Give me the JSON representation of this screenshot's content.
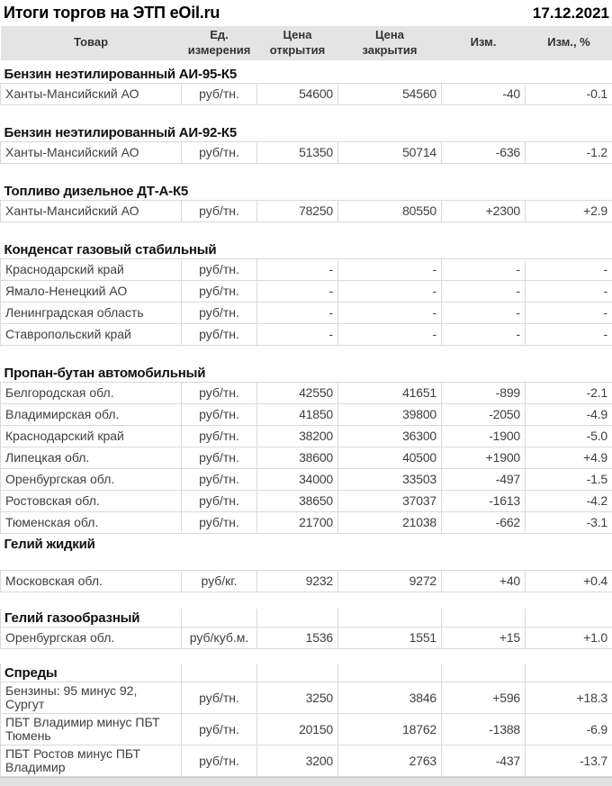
{
  "page": {
    "title": "Итоги торгов на ЭТП eOil.ru",
    "date": "17.12.2021"
  },
  "columns": [
    "Товар",
    "Ед. измерения",
    "Цена открытия",
    "Цена закрытия",
    "Изм.",
    "Изм., %"
  ],
  "colors": {
    "positive": "#008000",
    "negative": "#C00000",
    "header_bg": "#E4E4E4",
    "border": "#D9D9D9",
    "text": "#3F3F3F"
  },
  "sections": [
    {
      "title": "Бензин неэтилированный АИ-95-К5",
      "rows": [
        {
          "name": "Ханты-Мансийский АО",
          "unit": "руб/тн.",
          "open": "54600",
          "close": "54560",
          "change": "-40",
          "change_pct": "-0.1"
        }
      ]
    },
    {
      "title": "Бензин неэтилированный АИ-92-К5",
      "rows": [
        {
          "name": "Ханты-Мансийский АО",
          "unit": "руб/тн.",
          "open": "51350",
          "close": "50714",
          "change": "-636",
          "change_pct": "-1.2"
        }
      ]
    },
    {
      "title": "Топливо дизельное ДТ-А-К5",
      "rows": [
        {
          "name": "Ханты-Мансийский АО",
          "unit": "руб/тн.",
          "open": "78250",
          "close": "80550",
          "change": "+2300",
          "change_pct": "+2.9"
        }
      ]
    },
    {
      "title": "Конденсат газовый стабильный",
      "rows": [
        {
          "name": "Краснодарский край",
          "unit": "руб/тн.",
          "open": "-",
          "close": "-",
          "change": "-",
          "change_pct": "-"
        },
        {
          "name": "Ямало-Ненецкий АО",
          "unit": "руб/тн.",
          "open": "-",
          "close": "-",
          "change": "-",
          "change_pct": "-"
        },
        {
          "name": "Ленинградская область",
          "unit": "руб/тн.",
          "open": "-",
          "close": "-",
          "change": "-",
          "change_pct": "-"
        },
        {
          "name": "Ставропольский край",
          "unit": "руб/тн.",
          "open": "-",
          "close": "-",
          "change": "-",
          "change_pct": "-"
        }
      ]
    },
    {
      "title": "Пропан-бутан автомобильный",
      "rows": [
        {
          "name": "Белгородская обл.",
          "unit": "руб/тн.",
          "open": "42550",
          "close": "41651",
          "change": "-899",
          "change_pct": "-2.1"
        },
        {
          "name": "Владимирская обл.",
          "unit": "руб/тн.",
          "open": "41850",
          "close": "39800",
          "change": "-2050",
          "change_pct": "-4.9"
        },
        {
          "name": "Краснодарский край",
          "unit": "руб/тн.",
          "open": "38200",
          "close": "36300",
          "change": "-1900",
          "change_pct": "-5.0"
        },
        {
          "name": "Липецкая обл.",
          "unit": "руб/тн.",
          "open": "38600",
          "close": "40500",
          "change": "+1900",
          "change_pct": "+4.9"
        },
        {
          "name": "Оренбургская обл.",
          "unit": "руб/тн.",
          "open": "34000",
          "close": "33503",
          "change": "-497",
          "change_pct": "-1.5"
        },
        {
          "name": "Ростовская обл.",
          "unit": "руб/тн.",
          "open": "38650",
          "close": "37037",
          "change": "-1613",
          "change_pct": "-4.2"
        },
        {
          "name": "Тюменская обл.",
          "unit": "руб/тн.",
          "open": "21700",
          "close": "21038",
          "change": "-662",
          "change_pct": "-3.1"
        }
      ]
    },
    {
      "title": "Гелий жидкий",
      "rows": [
        {
          "name": "Московская обл.",
          "unit": "руб/кг.",
          "open": "9232",
          "close": "9272",
          "change": "+40",
          "change_pct": "+0.4"
        }
      ]
    },
    {
      "title": "Гелий газообразный",
      "rows": [
        {
          "name": "Оренбургская обл.",
          "unit": "руб/куб.м.",
          "open": "1536",
          "close": "1551",
          "change": "+15",
          "change_pct": "+1.0"
        }
      ]
    },
    {
      "title": "Спреды",
      "rows": [
        {
          "name": "Бензины: 95 минус 92, Сургут",
          "unit": "руб/тн.",
          "open": "3250",
          "close": "3846",
          "change": "+596",
          "change_pct": "+18.3"
        },
        {
          "name": "ПБТ Владимир минус ПБТ Тюмень",
          "unit": "руб/тн.",
          "open": "20150",
          "close": "18762",
          "change": "-1388",
          "change_pct": "-6.9"
        },
        {
          "name": "ПБТ Ростов минус ПБТ Владимир",
          "unit": "руб/тн.",
          "open": "3200",
          "close": "2763",
          "change": "-437",
          "change_pct": "-13.7"
        }
      ]
    }
  ]
}
